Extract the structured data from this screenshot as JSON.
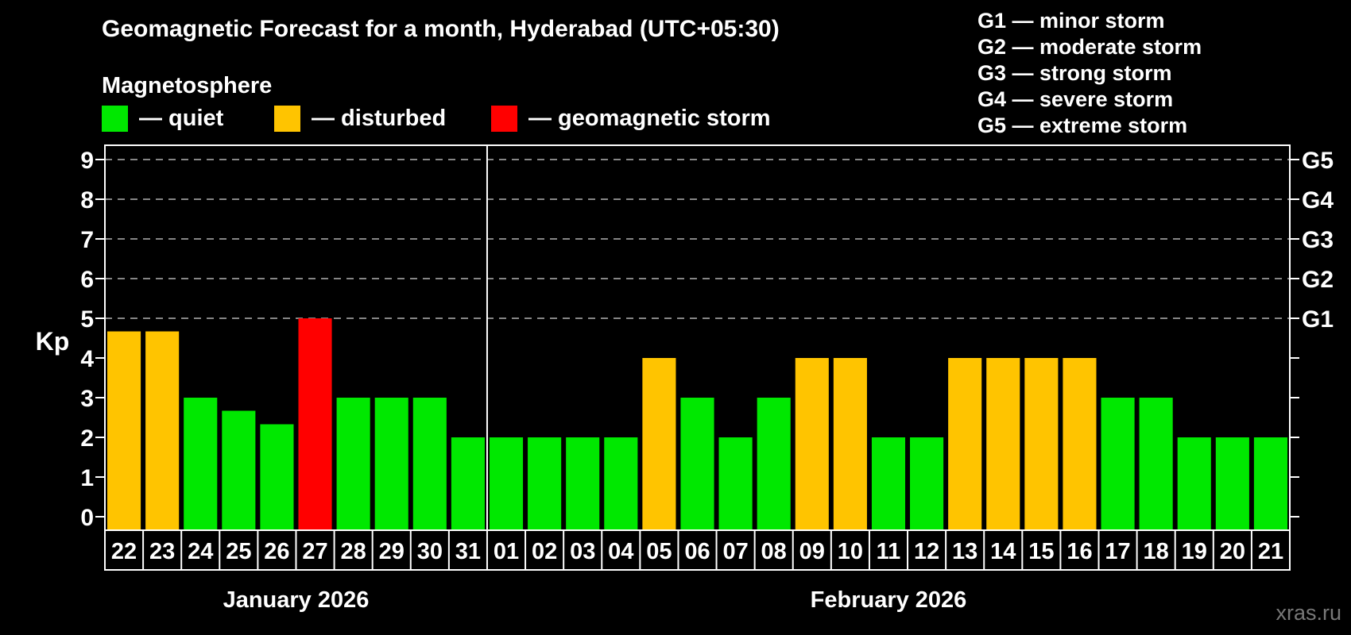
{
  "title": "Geomagnetic Forecast for a month, Hyderabad (UTC+05:30)",
  "subtitle": "Magnetosphere",
  "legend": {
    "items": [
      {
        "id": "quiet",
        "label": "— quiet",
        "color": "#00e800"
      },
      {
        "id": "disturbed",
        "label": "— disturbed",
        "color": "#ffc400"
      },
      {
        "id": "storm",
        "label": "— geomagnetic storm",
        "color": "#ff0000"
      }
    ]
  },
  "g_scale_legend": [
    "G1 — minor storm",
    "G2 — moderate storm",
    "G3 — strong storm",
    "G4 — severe storm",
    "G5 — extreme storm"
  ],
  "watermark": "xras.ru",
  "chart_data": {
    "type": "bar",
    "ylabel": "Kp",
    "ylim": [
      0,
      9
    ],
    "y_ticks": [
      0,
      1,
      2,
      3,
      4,
      5,
      6,
      7,
      8,
      9
    ],
    "gridlines_kp": [
      5,
      6,
      7,
      8,
      9
    ],
    "grid_color": "#b3b3b3",
    "axis_color": "#ffffff",
    "right_axis_labels": [
      {
        "label": "G1",
        "kp": 5
      },
      {
        "label": "G2",
        "kp": 6
      },
      {
        "label": "G3",
        "kp": 7
      },
      {
        "label": "G4",
        "kp": 8
      },
      {
        "label": "G5",
        "kp": 9
      }
    ],
    "status_colors": {
      "quiet": "#00e800",
      "disturbed": "#ffc400",
      "storm": "#ff0000"
    },
    "months": [
      {
        "label": "January 2026",
        "days": 10
      },
      {
        "label": "February 2026",
        "days": 21
      }
    ],
    "bars": [
      {
        "day": "22",
        "kp": 4.67,
        "status": "disturbed"
      },
      {
        "day": "23",
        "kp": 4.67,
        "status": "disturbed"
      },
      {
        "day": "24",
        "kp": 3,
        "status": "quiet"
      },
      {
        "day": "25",
        "kp": 2.67,
        "status": "quiet"
      },
      {
        "day": "26",
        "kp": 2.33,
        "status": "quiet"
      },
      {
        "day": "27",
        "kp": 5,
        "status": "storm"
      },
      {
        "day": "28",
        "kp": 3,
        "status": "quiet"
      },
      {
        "day": "29",
        "kp": 3,
        "status": "quiet"
      },
      {
        "day": "30",
        "kp": 3,
        "status": "quiet"
      },
      {
        "day": "31",
        "kp": 2,
        "status": "quiet"
      },
      {
        "day": "01",
        "kp": 2,
        "status": "quiet"
      },
      {
        "day": "02",
        "kp": 2,
        "status": "quiet"
      },
      {
        "day": "03",
        "kp": 2,
        "status": "quiet"
      },
      {
        "day": "04",
        "kp": 2,
        "status": "quiet"
      },
      {
        "day": "05",
        "kp": 4,
        "status": "disturbed"
      },
      {
        "day": "06",
        "kp": 3,
        "status": "quiet"
      },
      {
        "day": "07",
        "kp": 2,
        "status": "quiet"
      },
      {
        "day": "08",
        "kp": 3,
        "status": "quiet"
      },
      {
        "day": "09",
        "kp": 4,
        "status": "disturbed"
      },
      {
        "day": "10",
        "kp": 4,
        "status": "disturbed"
      },
      {
        "day": "11",
        "kp": 2,
        "status": "quiet"
      },
      {
        "day": "12",
        "kp": 2,
        "status": "quiet"
      },
      {
        "day": "13",
        "kp": 4,
        "status": "disturbed"
      },
      {
        "day": "14",
        "kp": 4,
        "status": "disturbed"
      },
      {
        "day": "15",
        "kp": 4,
        "status": "disturbed"
      },
      {
        "day": "16",
        "kp": 4,
        "status": "disturbed"
      },
      {
        "day": "17",
        "kp": 3,
        "status": "quiet"
      },
      {
        "day": "18",
        "kp": 3,
        "status": "quiet"
      },
      {
        "day": "19",
        "kp": 2,
        "status": "quiet"
      },
      {
        "day": "20",
        "kp": 2,
        "status": "quiet"
      },
      {
        "day": "21",
        "kp": 2,
        "status": "quiet"
      }
    ]
  }
}
